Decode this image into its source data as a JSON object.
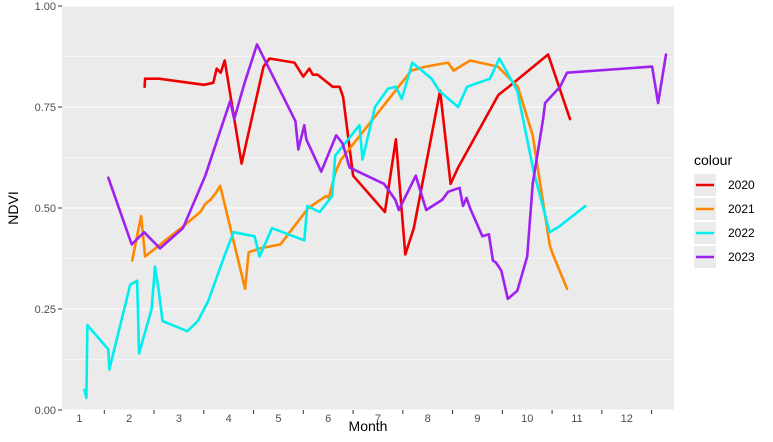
{
  "chart_data": {
    "type": "line",
    "xlabel": "Month",
    "ylabel": "NDVI",
    "ylim": [
      0,
      1
    ],
    "y_ticks": [
      "0.00",
      "0.25",
      "0.50",
      "0.75",
      "1.00"
    ],
    "x_ticks": [
      "1",
      "2",
      "3",
      "4",
      "5",
      "6",
      "7",
      "8",
      "9",
      "10",
      "11",
      "12"
    ],
    "legend_title": "colour",
    "legend_position": "right",
    "grid": true,
    "series": [
      {
        "name": "2020",
        "color": "#ee0000",
        "points": [
          [
            2.31,
            0.8
          ],
          [
            2.32,
            0.82
          ],
          [
            2.6,
            0.82
          ],
          [
            3.5,
            0.805
          ],
          [
            3.69,
            0.81
          ],
          [
            3.76,
            0.845
          ],
          [
            3.84,
            0.835
          ],
          [
            3.92,
            0.865
          ],
          [
            3.98,
            0.82
          ],
          [
            4.26,
            0.61
          ],
          [
            4.7,
            0.85
          ],
          [
            4.82,
            0.87
          ],
          [
            5.32,
            0.86
          ],
          [
            5.5,
            0.825
          ],
          [
            5.62,
            0.845
          ],
          [
            5.69,
            0.83
          ],
          [
            5.79,
            0.83
          ],
          [
            6.09,
            0.8
          ],
          [
            6.23,
            0.8
          ],
          [
            6.3,
            0.775
          ],
          [
            6.5,
            0.58
          ],
          [
            7.14,
            0.49
          ],
          [
            7.36,
            0.67
          ],
          [
            7.55,
            0.385
          ],
          [
            7.72,
            0.45
          ],
          [
            8.25,
            0.79
          ],
          [
            8.46,
            0.56
          ],
          [
            8.61,
            0.6
          ],
          [
            9.42,
            0.78
          ],
          [
            9.63,
            0.8
          ],
          [
            10.42,
            0.88
          ],
          [
            10.86,
            0.72
          ]
        ]
      },
      {
        "name": "2021",
        "color": "#ff8800",
        "points": [
          [
            2.06,
            0.37
          ],
          [
            2.24,
            0.48
          ],
          [
            2.32,
            0.38
          ],
          [
            2.73,
            0.42
          ],
          [
            3.04,
            0.45
          ],
          [
            3.43,
            0.49
          ],
          [
            3.53,
            0.51
          ],
          [
            3.63,
            0.52
          ],
          [
            3.73,
            0.535
          ],
          [
            3.83,
            0.555
          ],
          [
            4.33,
            0.3
          ],
          [
            4.4,
            0.39
          ],
          [
            4.63,
            0.4
          ],
          [
            5.04,
            0.41
          ],
          [
            5.6,
            0.5
          ],
          [
            5.96,
            0.53
          ],
          [
            6.01,
            0.525
          ],
          [
            6.15,
            0.59
          ],
          [
            6.26,
            0.62
          ],
          [
            7.67,
            0.84
          ],
          [
            7.96,
            0.85
          ],
          [
            8.41,
            0.86
          ],
          [
            8.52,
            0.84
          ],
          [
            8.85,
            0.865
          ],
          [
            9.41,
            0.85
          ],
          [
            9.81,
            0.8
          ],
          [
            10.11,
            0.68
          ],
          [
            10.45,
            0.41
          ],
          [
            10.5,
            0.39
          ],
          [
            10.8,
            0.3
          ]
        ]
      },
      {
        "name": "2022",
        "color": "#00eeee",
        "points": [
          [
            1.1,
            0.05
          ],
          [
            1.14,
            0.03
          ],
          [
            1.16,
            0.21
          ],
          [
            1.58,
            0.15
          ],
          [
            1.6,
            0.1
          ],
          [
            2.02,
            0.31
          ],
          [
            2.16,
            0.32
          ],
          [
            2.2,
            0.14
          ],
          [
            2.45,
            0.25
          ],
          [
            2.52,
            0.355
          ],
          [
            2.59,
            0.3
          ],
          [
            2.67,
            0.22
          ],
          [
            3.17,
            0.195
          ],
          [
            3.38,
            0.22
          ],
          [
            3.59,
            0.27
          ],
          [
            3.91,
            0.38
          ],
          [
            4.1,
            0.44
          ],
          [
            4.52,
            0.43
          ],
          [
            4.62,
            0.38
          ],
          [
            4.87,
            0.45
          ],
          [
            5.52,
            0.42
          ],
          [
            5.58,
            0.505
          ],
          [
            5.83,
            0.49
          ],
          [
            6.08,
            0.53
          ],
          [
            6.14,
            0.63
          ],
          [
            6.63,
            0.705
          ],
          [
            6.69,
            0.62
          ],
          [
            6.94,
            0.75
          ],
          [
            7.2,
            0.795
          ],
          [
            7.36,
            0.8
          ],
          [
            7.48,
            0.77
          ],
          [
            7.69,
            0.86
          ],
          [
            8.08,
            0.82
          ],
          [
            8.23,
            0.79
          ],
          [
            8.61,
            0.75
          ],
          [
            8.79,
            0.8
          ],
          [
            9.25,
            0.82
          ],
          [
            9.44,
            0.87
          ],
          [
            9.8,
            0.79
          ],
          [
            10.13,
            0.59
          ],
          [
            10.45,
            0.44
          ],
          [
            10.65,
            0.455
          ],
          [
            11.17,
            0.505
          ]
        ]
      },
      {
        "name": "2023",
        "color": "#a020f0",
        "points": [
          [
            1.58,
            0.575
          ],
          [
            2.05,
            0.41
          ],
          [
            2.3,
            0.44
          ],
          [
            2.62,
            0.4
          ],
          [
            3.08,
            0.45
          ],
          [
            3.53,
            0.58
          ],
          [
            4.03,
            0.765
          ],
          [
            4.11,
            0.72
          ],
          [
            4.32,
            0.81
          ],
          [
            4.57,
            0.905
          ],
          [
            5.34,
            0.715
          ],
          [
            5.4,
            0.645
          ],
          [
            5.52,
            0.705
          ],
          [
            5.56,
            0.67
          ],
          [
            5.86,
            0.59
          ],
          [
            6.16,
            0.68
          ],
          [
            6.29,
            0.66
          ],
          [
            6.43,
            0.6
          ],
          [
            7.12,
            0.56
          ],
          [
            7.35,
            0.52
          ],
          [
            7.42,
            0.495
          ],
          [
            7.76,
            0.58
          ],
          [
            7.97,
            0.495
          ],
          [
            8.29,
            0.52
          ],
          [
            8.41,
            0.54
          ],
          [
            8.64,
            0.55
          ],
          [
            8.71,
            0.505
          ],
          [
            8.78,
            0.525
          ],
          [
            8.85,
            0.5
          ],
          [
            9.1,
            0.43
          ],
          [
            9.23,
            0.435
          ],
          [
            9.31,
            0.37
          ],
          [
            9.37,
            0.365
          ],
          [
            9.48,
            0.345
          ],
          [
            9.61,
            0.275
          ],
          [
            9.8,
            0.295
          ],
          [
            10.0,
            0.38
          ],
          [
            10.11,
            0.56
          ],
          [
            10.32,
            0.72
          ],
          [
            10.36,
            0.76
          ],
          [
            10.66,
            0.8
          ],
          [
            10.8,
            0.835
          ],
          [
            12.51,
            0.85
          ],
          [
            12.63,
            0.76
          ],
          [
            12.79,
            0.88
          ]
        ]
      }
    ]
  }
}
